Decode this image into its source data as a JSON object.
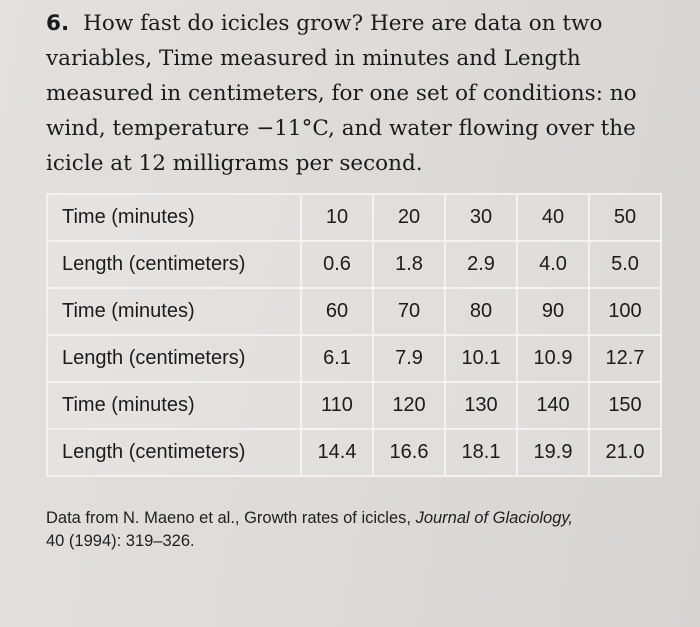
{
  "problem": {
    "number": "6.",
    "lines": [
      "How fast do icicles grow? Here are data on two",
      "variables, Time measured in minutes and Length",
      "measured in centimeters, for one set of conditions: no",
      "wind, temperature −11°C, and water flowing over the",
      "icicle at 12 milligrams per second."
    ]
  },
  "table": {
    "rows": [
      {
        "label": "Time (minutes)",
        "values": [
          "10",
          "20",
          "30",
          "40",
          "50"
        ]
      },
      {
        "label": "Length (centimeters)",
        "values": [
          "0.6",
          "1.8",
          "2.9",
          "4.0",
          "5.0"
        ]
      },
      {
        "label": "Time (minutes)",
        "values": [
          "60",
          "70",
          "80",
          "90",
          "100"
        ]
      },
      {
        "label": "Length (centimeters)",
        "values": [
          "6.1",
          "7.9",
          "10.1",
          "10.9",
          "12.7"
        ]
      },
      {
        "label": "Time (minutes)",
        "values": [
          "110",
          "120",
          "130",
          "140",
          "150"
        ]
      },
      {
        "label": "Length (centimeters)",
        "values": [
          "14.4",
          "16.6",
          "18.1",
          "19.9",
          "21.0"
        ]
      }
    ]
  },
  "source": {
    "prefix": "Data from N. Maeno et al., Growth rates of icicles, ",
    "journal": "Journal of Glaciology,",
    "suffix": "40 (1994): 319–326."
  }
}
